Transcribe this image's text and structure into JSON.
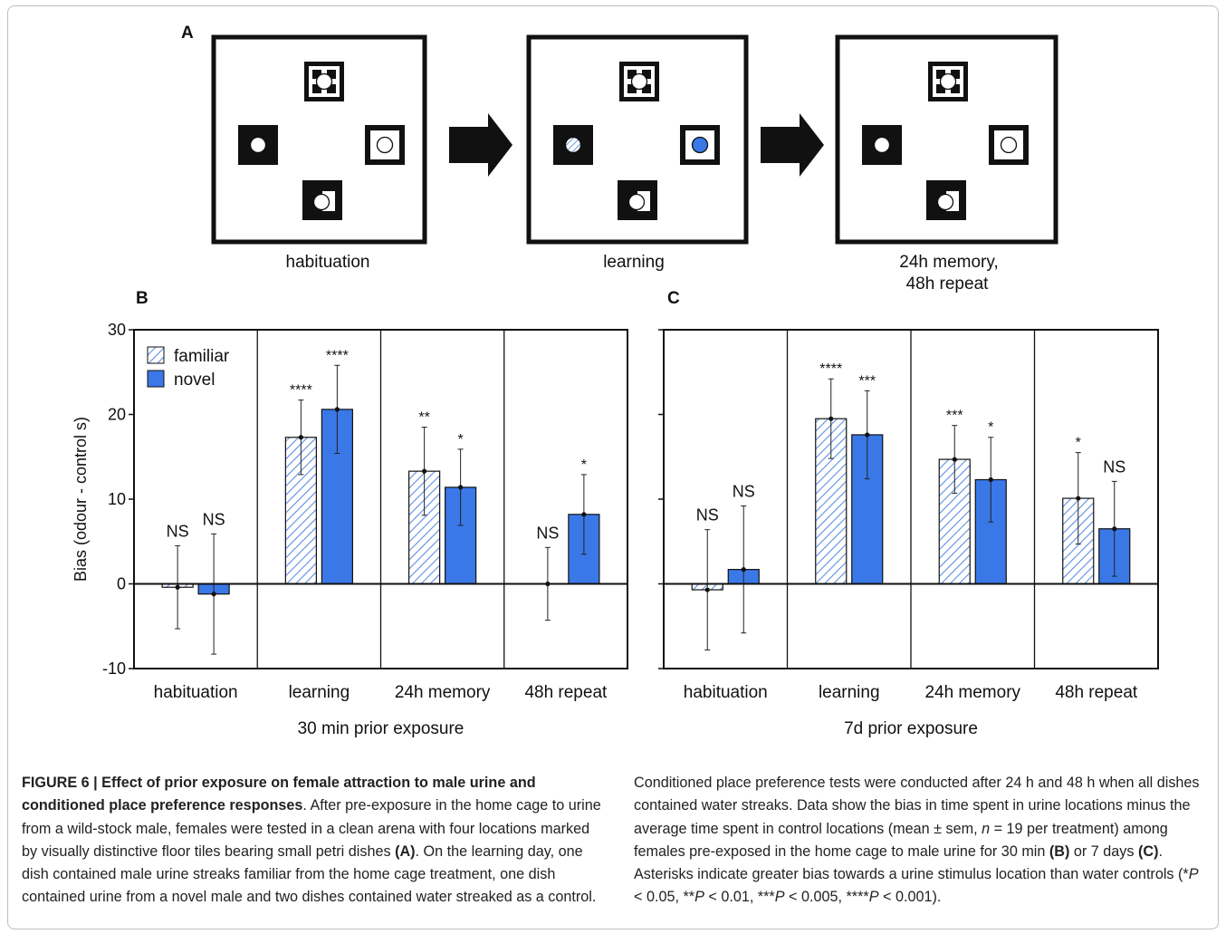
{
  "panel_labels": {
    "a": "A",
    "b": "B",
    "c": "C"
  },
  "arenas": [
    {
      "label": "habituation"
    },
    {
      "label": "learning"
    },
    {
      "label_line1": "24h memory,",
      "label_line2": "48h repeat"
    }
  ],
  "colors": {
    "novel": "#3a78e7",
    "familiar_stripe": "#5b8fe0",
    "axis": "#111111"
  },
  "chart_data": [
    {
      "panel": "B",
      "type": "bar",
      "xlabel": "30 min prior exposure",
      "ylabel": "Bias (odour - control s)",
      "ylim": [
        -10,
        30
      ],
      "yticks": [
        -10,
        0,
        10,
        20,
        30
      ],
      "categories": [
        "habituation",
        "learning",
        "24h memory",
        "48h repeat"
      ],
      "legend": {
        "position": "top-left",
        "entries": [
          "familiar",
          "novel"
        ]
      },
      "series": [
        {
          "name": "familiar",
          "pattern": "hatched",
          "values": [
            -0.4,
            17.3,
            13.3,
            0.0
          ],
          "err": [
            4.9,
            4.4,
            5.2,
            4.3
          ],
          "sig": [
            "NS",
            "****",
            "**",
            "NS"
          ]
        },
        {
          "name": "novel",
          "pattern": "solid",
          "values": [
            -1.2,
            20.6,
            11.4,
            8.2
          ],
          "err": [
            7.1,
            5.2,
            4.5,
            4.7
          ],
          "sig": [
            "NS",
            "****",
            "*",
            "*"
          ]
        }
      ]
    },
    {
      "panel": "C",
      "type": "bar",
      "xlabel": "7d prior exposure",
      "ylim": [
        -10,
        30
      ],
      "categories": [
        "habituation",
        "learning",
        "24h memory",
        "48h repeat"
      ],
      "series": [
        {
          "name": "familiar",
          "pattern": "hatched",
          "values": [
            -0.7,
            19.5,
            14.7,
            10.1
          ],
          "err": [
            7.1,
            4.7,
            4.0,
            5.4
          ],
          "sig": [
            "NS",
            "****",
            "***",
            "*"
          ]
        },
        {
          "name": "novel",
          "pattern": "solid",
          "values": [
            1.7,
            17.6,
            12.3,
            6.5
          ],
          "err": [
            7.5,
            5.2,
            5.0,
            5.6
          ],
          "sig": [
            "NS",
            "***",
            "*",
            "NS"
          ]
        }
      ]
    }
  ],
  "caption": {
    "title": "FIGURE 6 | Effect of prior exposure on female attraction to male urine and conditioned place preference responses",
    "left_text_1": ". After pre-exposure in the home cage to urine from a wild-stock male, females were tested in a clean arena with four locations marked by visually distinctive floor tiles bearing small petri dishes ",
    "ref_a": "(A)",
    "left_text_2": ". On the learning day, one dish contained male urine streaks familiar from the home cage treatment, one dish contained urine from a novel male and two dishes contained water streaked as a control.",
    "right_text_1": "Conditioned place preference tests were conducted after 24 h and 48 h when all dishes contained water streaks. Data show the bias in time spent in urine locations minus the average time spent in control locations (mean ± sem, ",
    "n_sym": "n",
    "right_text_2": " = 19 per treatment) among females pre-exposed in the home cage to male urine for 30 min ",
    "ref_b": "(B)",
    "right_text_3": " or 7 days ",
    "ref_c": "(C)",
    "right_text_4": ". Asterisks indicate greater bias towards a urine stimulus location than water controls (*",
    "p1": "P",
    "right_text_5": " < 0.05, **",
    "p2": "P",
    "right_text_6": " < 0.01, ***",
    "p3": "P",
    "right_text_7": " < 0.005, ****",
    "p4": "P",
    "right_text_8": " < 0.001)."
  }
}
